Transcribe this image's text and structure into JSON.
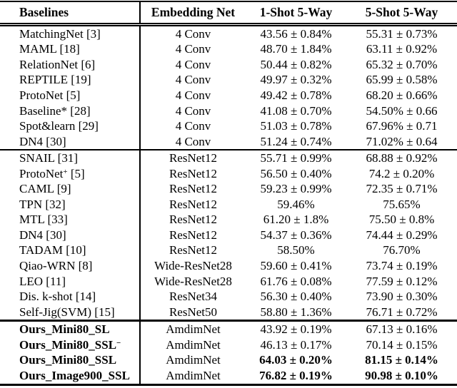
{
  "table": {
    "headers": [
      "Baselines",
      "Embedding Net",
      "1-Shot 5-Way",
      "5-Shot 5-Way"
    ],
    "sections": [
      {
        "name": "conv4-baselines",
        "rows": [
          {
            "method": "MatchingNet [3]",
            "net": "4 Conv",
            "one_shot": "43.56 ± 0.84%",
            "five_shot": "55.31 ± 0.73%"
          },
          {
            "method": "MAML [18]",
            "net": "4 Conv",
            "one_shot": "48.70 ± 1.84%",
            "five_shot": "63.11 ± 0.92%"
          },
          {
            "method": "RelationNet [6]",
            "net": "4 Conv",
            "one_shot": "50.44 ± 0.82%",
            "five_shot": "65.32 ± 0.70%"
          },
          {
            "method": "REPTILE [19]",
            "net": "4 Conv",
            "one_shot": "49.97 ± 0.32%",
            "five_shot": "65.99 ± 0.58%"
          },
          {
            "method": "ProtoNet [5]",
            "net": "4 Conv",
            "one_shot": "49.42 ± 0.78%",
            "five_shot": "68.20 ± 0.66%"
          },
          {
            "method": "Baseline* [28]",
            "net": "4 Conv",
            "one_shot": "41.08 ± 0.70%",
            "five_shot": "54.50% ± 0.66"
          },
          {
            "method": "Spot&learn [29]",
            "net": "4 Conv",
            "one_shot": "51.03 ± 0.78%",
            "five_shot": "67.96% ± 0.71"
          },
          {
            "method": "DN4 [30]",
            "net": "4 Conv",
            "one_shot": "51.24 ± 0.74%",
            "five_shot": "71.02% ± 0.64"
          }
        ]
      },
      {
        "name": "resnet-baselines",
        "rows": [
          {
            "method": "SNAIL [31]",
            "net": "ResNet12",
            "one_shot": "55.71 ± 0.99%",
            "five_shot": "68.88 ± 0.92%"
          },
          {
            "method": "ProtoNet",
            "method_sup": "+",
            "method_post": " [5]",
            "net": "ResNet12",
            "one_shot": "56.50 ± 0.40%",
            "five_shot": "74.2 ± 0.20%"
          },
          {
            "method": "CAML [9]",
            "net": "ResNet12",
            "one_shot": "59.23 ± 0.99%",
            "five_shot": "72.35 ± 0.71%"
          },
          {
            "method": "TPN [32]",
            "net": "ResNet12",
            "one_shot": "59.46%",
            "five_shot": "75.65%"
          },
          {
            "method": "MTL [33]",
            "net": "ResNet12",
            "one_shot": "61.20 ± 1.8%",
            "five_shot": "75.50 ± 0.8%"
          },
          {
            "method": "DN4 [30]",
            "net": "ResNet12",
            "one_shot": "54.37 ± 0.36%",
            "five_shot": "74.44 ± 0.29%"
          },
          {
            "method": "TADAM [10]",
            "net": "ResNet12",
            "one_shot": "58.50%",
            "five_shot": "76.70%"
          },
          {
            "method": "Qiao-WRN [8]",
            "net": "Wide-ResNet28",
            "one_shot": "59.60 ± 0.41%",
            "five_shot": "73.74 ± 0.19%"
          },
          {
            "method": "LEO [11]",
            "net": "Wide-ResNet28",
            "one_shot": "61.76 ± 0.08%",
            "five_shot": "77.59 ± 0.12%"
          },
          {
            "method": "Dis. k-shot [14]",
            "net": "ResNet34",
            "one_shot": "56.30 ± 0.40%",
            "five_shot": "73.90 ± 0.30%"
          },
          {
            "method": "Self-Jig(SVM) [15]",
            "net": "ResNet50",
            "one_shot": "58.80 ± 1.36%",
            "five_shot": "76.71 ± 0.72%"
          }
        ]
      },
      {
        "name": "ours",
        "rows": [
          {
            "method": "Ours_Mini80_SL",
            "bold_method": true,
            "net": "AmdimNet",
            "one_shot": "43.92 ± 0.19%",
            "five_shot": "67.13 ± 0.16%"
          },
          {
            "method": "Ours_Mini80_SSL",
            "method_sup": "−",
            "bold_method": true,
            "net": "AmdimNet",
            "one_shot": "46.13 ± 0.17%",
            "five_shot": "70.14 ± 0.15%"
          },
          {
            "method": "Ours_Mini80_SSL",
            "bold_method": true,
            "bold_values": true,
            "net": "AmdimNet",
            "one_shot": "64.03 ± 0.20%",
            "five_shot": "81.15 ± 0.14%"
          },
          {
            "method": "Ours_Image900_SSL",
            "bold_method": true,
            "bold_values": true,
            "net": "AmdimNet",
            "one_shot": "76.82 ± 0.19%",
            "five_shot": "90.98 ± 0.10%"
          }
        ]
      }
    ]
  }
}
